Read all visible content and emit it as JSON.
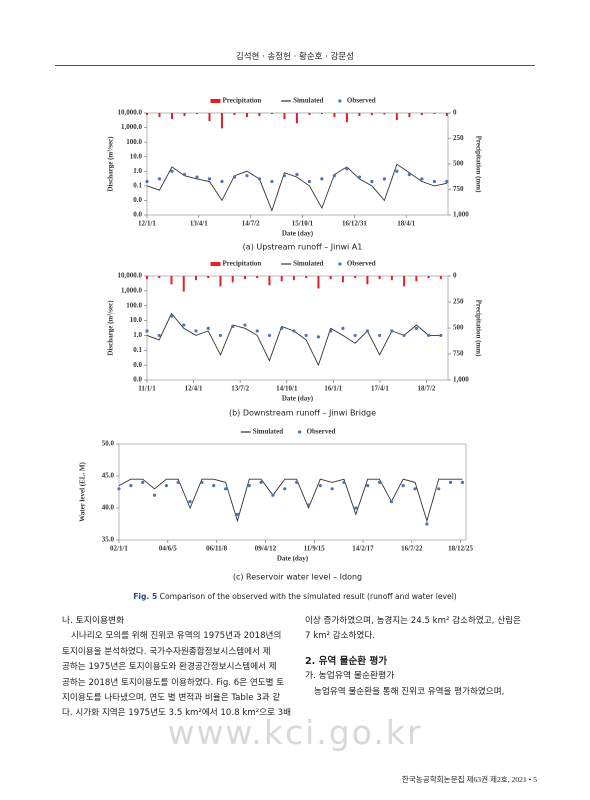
{
  "header": "김석현 · 송정헌 · 황순호 · 강문성",
  "chart_data": [
    {
      "type": "line",
      "caption": "(a) Upstream runoff – Jinwi A1",
      "xlabel": "Date (day)",
      "ylabel": "Discharge (m³/sec)",
      "y2label": "Precipitation (mm)",
      "ylog": true,
      "legend": "top",
      "x": [
        0,
        110,
        220,
        330,
        440,
        550,
        660,
        770,
        880,
        990,
        1100,
        1210,
        1320,
        1430,
        1540,
        1650,
        1760,
        1870,
        1980,
        2090,
        2200,
        2310,
        2420,
        2530,
        2640
      ],
      "xlim": [
        0,
        2650
      ],
      "xticks": [
        {
          "value": 0,
          "label": "12/1/1"
        },
        {
          "value": 456,
          "label": "13/4/1"
        },
        {
          "value": 913,
          "label": "14/7/2"
        },
        {
          "value": 1369,
          "label": "15/10/1"
        },
        {
          "value": 1826,
          "label": "16/12/31"
        },
        {
          "value": 2282,
          "label": "18/4/1"
        }
      ],
      "ylim": [
        0.001,
        10000
      ],
      "yticks": [
        {
          "value": 10000,
          "label": "10,000.0"
        },
        {
          "value": 1000,
          "label": "1,000.0"
        },
        {
          "value": 100,
          "label": "100.0"
        },
        {
          "value": 10,
          "label": "10.0"
        },
        {
          "value": 1,
          "label": "1.0"
        },
        {
          "value": 0.1,
          "label": "0.1"
        },
        {
          "value": 0.01,
          "label": "0.0"
        },
        {
          "value": 0.001,
          "label": "0.0"
        }
      ],
      "y2lim": [
        0,
        1000
      ],
      "y2_inverted": true,
      "y2ticks": [
        0,
        250,
        500,
        750,
        {
          "value": 1000,
          "label": "1,000"
        }
      ],
      "series": [
        {
          "name": "Precipitation",
          "mark": "bar",
          "axis": "y2",
          "color": "#e0202a",
          "values": [
            20,
            40,
            60,
            30,
            10,
            80,
            150,
            20,
            40,
            30,
            10,
            60,
            100,
            20,
            10,
            40,
            90,
            30,
            20,
            15,
            70,
            40,
            20,
            10,
            30
          ]
        },
        {
          "name": "Simulated",
          "mark": "line",
          "color": "#333333",
          "values": [
            0.1,
            0.05,
            2,
            0.5,
            0.3,
            0.2,
            0.01,
            0.5,
            1,
            0.3,
            0.002,
            0.8,
            0.4,
            0.1,
            0.003,
            0.6,
            2,
            0.3,
            0.1,
            0.01,
            3,
            0.8,
            0.2,
            0.1,
            0.15
          ]
        },
        {
          "name": "Observed",
          "mark": "dots",
          "color": "#4a74b8",
          "values": [
            0.2,
            0.3,
            1,
            0.6,
            0.4,
            0.3,
            0.2,
            0.4,
            0.5,
            0.3,
            0.2,
            0.5,
            0.6,
            0.2,
            0.3,
            0.5,
            1.5,
            0.4,
            0.2,
            0.3,
            1,
            0.6,
            0.3,
            0.2,
            0.2
          ]
        }
      ]
    },
    {
      "type": "line",
      "caption": "(b) Downstream runoff – Jinwi Bridge",
      "xlabel": "Date (day)",
      "ylabel": "Discharge (m³/sec)",
      "y2label": "Precipitation (mm)",
      "ylog": true,
      "legend": "top",
      "x": [
        0,
        120,
        240,
        360,
        480,
        600,
        720,
        840,
        960,
        1080,
        1200,
        1320,
        1440,
        1560,
        1680,
        1800,
        1920,
        2040,
        2160,
        2280,
        2400,
        2520,
        2640,
        2760,
        2880
      ],
      "xlim": [
        0,
        2950
      ],
      "xticks": [
        {
          "value": 0,
          "label": "11/1/1"
        },
        {
          "value": 457,
          "label": "12/4/1"
        },
        {
          "value": 913,
          "label": "13/7/2"
        },
        {
          "value": 1370,
          "label": "14/10/1"
        },
        {
          "value": 1826,
          "label": "16/1/1"
        },
        {
          "value": 2283,
          "label": "17/4/1"
        },
        {
          "value": 2739,
          "label": "18/7/2"
        }
      ],
      "ylim": [
        0.001,
        10000
      ],
      "yticks": [
        {
          "value": 10000,
          "label": "10,000.0"
        },
        {
          "value": 1000,
          "label": "1,000.0"
        },
        {
          "value": 100,
          "label": "100.0"
        },
        {
          "value": 10,
          "label": "10.0"
        },
        {
          "value": 1,
          "label": "1.0"
        },
        {
          "value": 0.1,
          "label": "0.1"
        },
        {
          "value": 0.01,
          "label": "0.0"
        },
        {
          "value": 0.001,
          "label": "0.0"
        }
      ],
      "y2lim": [
        0,
        1000
      ],
      "y2_inverted": true,
      "y2ticks": [
        0,
        250,
        500,
        750,
        {
          "value": 1000,
          "label": "1,000"
        }
      ],
      "series": [
        {
          "name": "Precipitation",
          "mark": "bar",
          "axis": "y2",
          "color": "#e0202a",
          "values": [
            30,
            20,
            80,
            150,
            40,
            20,
            100,
            60,
            30,
            20,
            90,
            50,
            40,
            20,
            120,
            30,
            60,
            20,
            80,
            30,
            40,
            100,
            50,
            20,
            30
          ]
        },
        {
          "name": "Simulated",
          "mark": "line",
          "color": "#333333",
          "values": [
            1,
            0.5,
            30,
            3,
            1,
            2,
            0.05,
            5,
            3,
            1,
            0.02,
            4,
            2,
            0.5,
            0.01,
            3,
            1,
            0.3,
            2,
            0.05,
            2,
            1,
            5,
            1,
            1
          ]
        },
        {
          "name": "Observed",
          "mark": "dots",
          "color": "#4a74b8",
          "values": [
            2,
            1,
            20,
            5,
            2,
            3,
            1,
            4,
            5,
            2,
            1,
            3,
            2,
            1,
            0.8,
            2,
            3,
            1,
            2,
            1,
            2,
            1,
            3,
            1,
            1
          ]
        }
      ]
    },
    {
      "type": "line",
      "caption": "(c) Reservoir water level – Idong",
      "xlabel": "Date (day)",
      "ylabel": "Water level (EL. M)",
      "ylog": false,
      "legend": "top",
      "x": [
        0,
        215,
        430,
        645,
        860,
        1075,
        1290,
        1505,
        1720,
        1935,
        2150,
        2365,
        2580,
        2795,
        3010,
        3225,
        3440,
        3655,
        3870,
        4085,
        4300,
        4515,
        4730,
        4945,
        5160,
        5375,
        5590,
        5805,
        6020,
        6235
      ],
      "xlim": [
        0,
        6300
      ],
      "xticks": [
        {
          "value": 0,
          "label": "02/1/1"
        },
        {
          "value": 886,
          "label": "04/6/5"
        },
        {
          "value": 1772,
          "label": "06/11/8"
        },
        {
          "value": 2658,
          "label": "09/4/12"
        },
        {
          "value": 3544,
          "label": "11/9/15"
        },
        {
          "value": 4430,
          "label": "14/2/17"
        },
        {
          "value": 5316,
          "label": "16/7/22"
        },
        {
          "value": 6202,
          "label": "18/12/25"
        }
      ],
      "ylim": [
        35,
        50
      ],
      "yticks": [
        {
          "value": 35,
          "label": "35.0"
        },
        {
          "value": 40,
          "label": "40.0"
        },
        {
          "value": 45,
          "label": "45.0"
        },
        {
          "value": 50,
          "label": "50.0"
        }
      ],
      "series": [
        {
          "name": "Simulated",
          "mark": "line",
          "color": "#333333",
          "values": [
            43.5,
            44.5,
            44.5,
            43,
            44.5,
            44.5,
            40,
            44.5,
            44.5,
            44,
            38,
            44.5,
            44.5,
            42,
            44.5,
            44.5,
            40,
            44.5,
            44,
            44.5,
            39,
            44.5,
            44.5,
            41,
            44.5,
            44,
            38,
            44.5,
            44.5,
            44.5
          ]
        },
        {
          "name": "Observed",
          "mark": "dots",
          "color": "#4a74b8",
          "values": [
            43,
            43.5,
            44,
            42,
            43.5,
            44,
            41,
            44,
            43.5,
            43,
            39,
            43.5,
            44,
            42,
            43,
            44,
            40.5,
            43.5,
            43,
            44,
            40,
            43.5,
            44,
            41,
            43.5,
            43,
            37.5,
            43,
            44,
            44
          ]
        }
      ]
    }
  ],
  "figure_caption": {
    "label": "Fig. 5",
    "text": "Comparison of the observed with the simulated result (runoff and water level)"
  },
  "body_left": {
    "heading": "나. 토지이용변화",
    "lines": [
      "시나리오 모의를 위해 진위코 유역의 1975년과 2018년의",
      "토지이용을 분석하였다. 국가수자원종합정보시스템에서 제",
      "공하는 1975년은 토지이용도와 환경공간정보시스템에서 제",
      "공하는 2018년 토지이용도를 이용하였다. Fig. 6은 연도별 토",
      "지이용도를 나타냈으며, 연도 별 변적과 비율은 Table 3과 같",
      "다. 시가화 지역은 1975년도 3.5 km²에서 10.8 km²으로 3배"
    ]
  },
  "body_right": {
    "lines": [
      "이상 증가하였으며, 농경지는 24.5 km² 감소하였고, 산림은",
      "7 km² 감소하였다."
    ],
    "heading": "2. 유역 물순환 평가",
    "subheading": "가. 농업유역 물순환평가",
    "sub_lines": [
      "농업유역 물순환을 통해 진위코 유역을 평가하였으며,"
    ]
  },
  "watermark": "www.kci.go.kr",
  "footer": "한국농공학회논문집 제63권 제2호, 2021 • 5"
}
